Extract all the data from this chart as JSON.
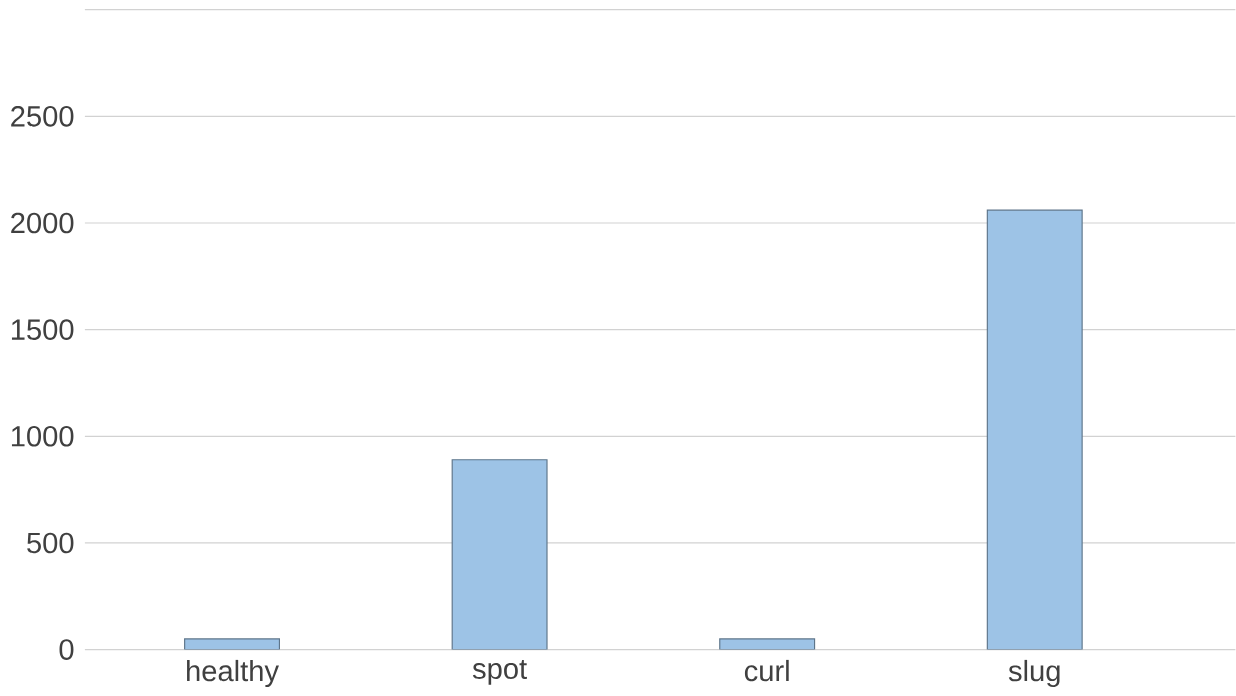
{
  "chart_data": {
    "type": "bar",
    "categories": [
      "healthy",
      "spot",
      "curl",
      "slug"
    ],
    "values": [
      50,
      890,
      50,
      2060
    ],
    "color": "#9dc3e6",
    "ylim": [
      0,
      3000
    ],
    "yticks": [
      0,
      500,
      1000,
      1500,
      2000,
      2500,
      {
        "value": 3000,
        "label": null
      }
    ],
    "grid": "y"
  }
}
